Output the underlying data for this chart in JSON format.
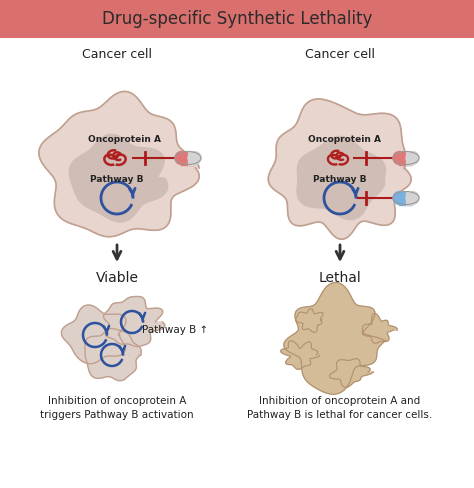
{
  "title": "Drug-specific Synthetic Lethality",
  "title_bg": "#d9706e",
  "title_color": "#2b2b2b",
  "bg_color": "#ffffff",
  "cell_outer_color": "#e8d5ce",
  "cell_inner_color": "#d0bdb5",
  "cell_stroke": "#c0a090",
  "arrow_color": "#333333",
  "inhibit_line_color": "#aa1a1a",
  "oncoprotein_color": "#b02020",
  "pathway_color": "#2c52a0",
  "text_dark": "#222222",
  "viable_cell_color": "#ddd0c8",
  "lethal_cell_color": "#d4bc98",
  "lethal_cell_stroke": "#b09070",
  "left_label": "Cancer cell",
  "right_label": "Cancer cell",
  "sublabel1": "Oncoprotein A",
  "sublabel2": "Pathway B",
  "viable_text": "Viable",
  "lethal_text": "Lethal",
  "pathway_b_up": "Pathway B ↑",
  "caption_left": "Inhibition of oncoprotein A\ntriggers Pathway B activation",
  "caption_right": "Inhibition of oncoprotein A and\nPathway B is lethal for cancer cells."
}
